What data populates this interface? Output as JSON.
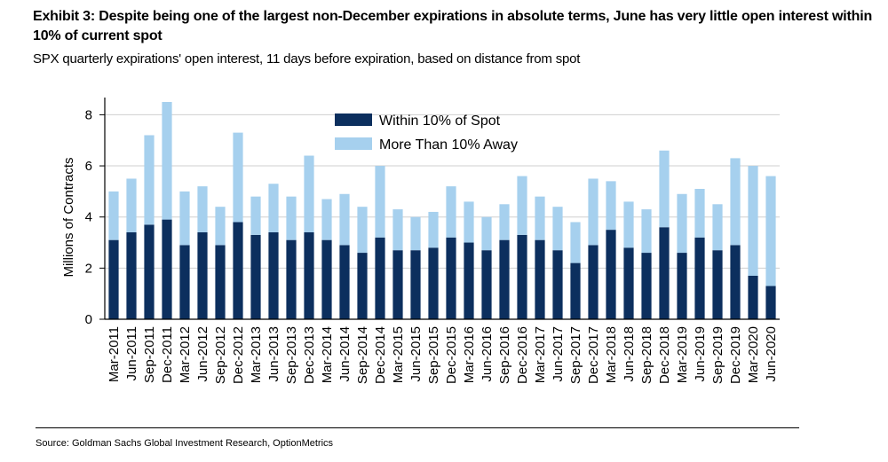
{
  "header": {
    "title": "Exhibit 3: Despite being one of the largest non-December expirations in absolute terms, June has very little open interest within 10% of current spot",
    "subtitle": "SPX quarterly expirations' open interest, 11 days before expiration, based on distance from spot"
  },
  "footer": {
    "source": "Source: Goldman Sachs Global Investment Research, OptionMetrics"
  },
  "chart_data": {
    "type": "bar",
    "stacked": true,
    "ylabel": "Millions of Contracts",
    "ylim": [
      0,
      8.5
    ],
    "yticks": [
      0,
      2,
      4,
      6,
      8
    ],
    "grid": true,
    "legend_position": "top-center",
    "colors": {
      "within": "#0c2f5e",
      "away": "#a6d0ee"
    },
    "categories": [
      "Mar-2011",
      "Jun-2011",
      "Sep-2011",
      "Dec-2011",
      "Mar-2012",
      "Jun-2012",
      "Sep-2012",
      "Dec-2012",
      "Mar-2013",
      "Jun-2013",
      "Sep-2013",
      "Dec-2013",
      "Mar-2014",
      "Jun-2014",
      "Sep-2014",
      "Dec-2014",
      "Mar-2015",
      "Jun-2015",
      "Sep-2015",
      "Dec-2015",
      "Mar-2016",
      "Jun-2016",
      "Sep-2016",
      "Dec-2016",
      "Mar-2017",
      "Jun-2017",
      "Sep-2017",
      "Dec-2017",
      "Mar-2018",
      "Jun-2018",
      "Sep-2018",
      "Dec-2018",
      "Mar-2019",
      "Jun-2019",
      "Sep-2019",
      "Dec-2019",
      "Mar-2020",
      "Jun-2020"
    ],
    "series": [
      {
        "name": "Within 10% of Spot",
        "values": [
          3.1,
          3.4,
          3.7,
          3.9,
          2.9,
          3.4,
          2.9,
          3.8,
          3.3,
          3.4,
          3.1,
          3.4,
          3.1,
          2.9,
          2.6,
          3.2,
          2.7,
          2.7,
          2.8,
          3.2,
          3.0,
          2.7,
          3.1,
          3.3,
          3.1,
          2.7,
          2.2,
          2.9,
          3.5,
          2.8,
          2.6,
          3.6,
          2.6,
          3.2,
          2.7,
          2.9,
          1.7,
          1.3
        ]
      },
      {
        "name": "More Than 10% Away",
        "values": [
          1.9,
          2.1,
          3.5,
          4.6,
          2.1,
          1.8,
          1.5,
          3.5,
          1.5,
          1.9,
          1.7,
          3.0,
          1.6,
          2.0,
          1.8,
          2.8,
          1.6,
          1.3,
          1.4,
          2.0,
          1.6,
          1.3,
          1.4,
          2.3,
          1.7,
          1.7,
          1.6,
          2.6,
          1.9,
          1.8,
          1.7,
          3.0,
          2.3,
          1.9,
          1.8,
          3.4,
          4.3,
          4.3
        ]
      }
    ]
  }
}
